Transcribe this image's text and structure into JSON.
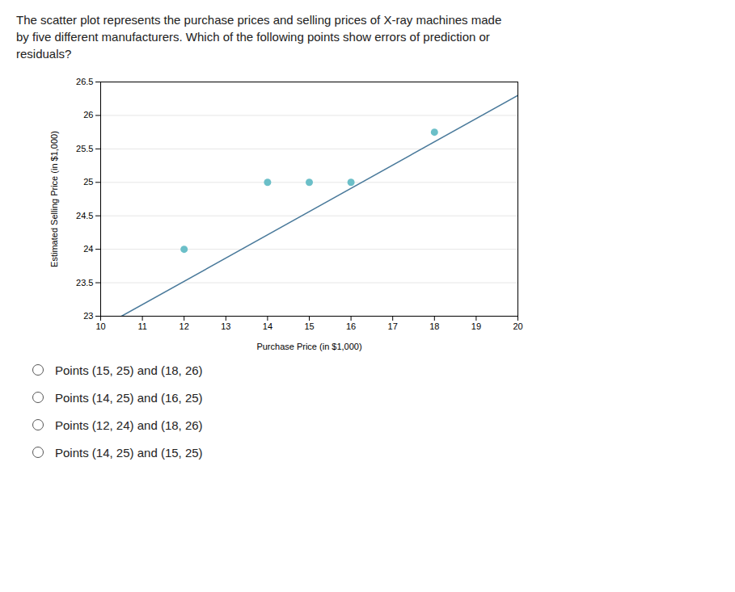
{
  "chart_data": {
    "type": "scatter",
    "title": "The scatter plot represents the purchase prices and selling prices of X-ray machines made\nby five different manufacturers. Which of the following points show errors of prediction or\nresiduals?",
    "xlabel": "Purchase Price (in $1,000)",
    "ylabel": "Estimated Selling Price (in $1,000)",
    "xlim": [
      10,
      20
    ],
    "ylim": [
      23,
      26.5
    ],
    "xticks": [
      10,
      11,
      12,
      13,
      14,
      15,
      16,
      17,
      18,
      19,
      20
    ],
    "yticks": [
      23,
      23.5,
      24,
      24.5,
      25,
      25.5,
      26,
      26.5
    ],
    "grid": "y",
    "series": [
      {
        "type": "scatter",
        "color": "#6bbfc8",
        "x": [
          12,
          14,
          15,
          16,
          18
        ],
        "values": [
          24,
          25,
          25,
          25,
          25.75
        ]
      },
      {
        "type": "line",
        "color": "#4a7a9b",
        "x": [
          10.5,
          20
        ],
        "values": [
          23.0,
          26.3
        ]
      }
    ],
    "annotations": [
      "Points (15, 25) and (18, 26)",
      "Points (14, 25) and (16, 25)",
      "Points (12, 24) and (18, 26)",
      "Points (14, 25) and (15, 25)"
    ]
  }
}
